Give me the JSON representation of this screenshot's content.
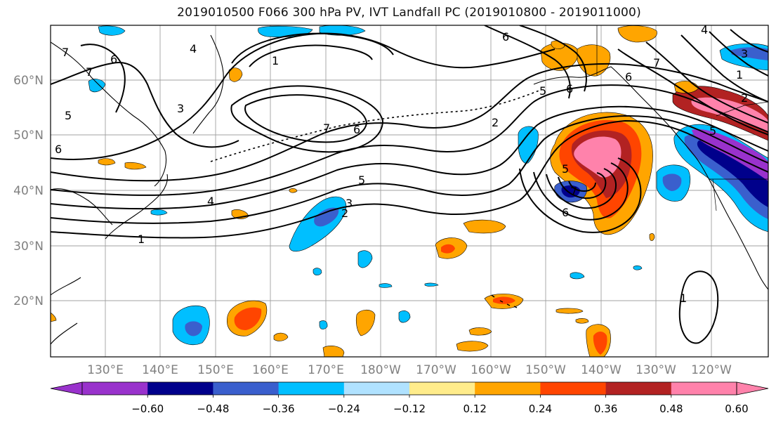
{
  "title": "2019010500 F066 300 hPa PV, IVT Landfall PC (2019010800 - 2019011000)",
  "map": {
    "lat_labels": [
      "60°N",
      "50°N",
      "40°N",
      "30°N",
      "20°N"
    ],
    "lon_labels": [
      "130°E",
      "140°E",
      "150°E",
      "160°E",
      "170°E",
      "180°W",
      "170°W",
      "160°W",
      "150°W",
      "140°W",
      "130°W",
      "120°W"
    ],
    "gridlines": true,
    "contour_labels": [
      "1",
      "2",
      "3",
      "4",
      "5",
      "6",
      "7"
    ]
  },
  "colorbar": {
    "tick_labels": [
      "−0.60",
      "−0.48",
      "−0.36",
      "−0.24",
      "−0.12",
      "0.12",
      "0.24",
      "0.36",
      "0.48",
      "0.60"
    ],
    "colors": [
      "#9932cc",
      "#00008b",
      "#3a5fcd",
      "#00bfff",
      "#b0e2ff",
      "#ffffff",
      "#ffec8b",
      "#ffa500",
      "#ff4500",
      "#b22222",
      "#ff82ab"
    ]
  }
}
